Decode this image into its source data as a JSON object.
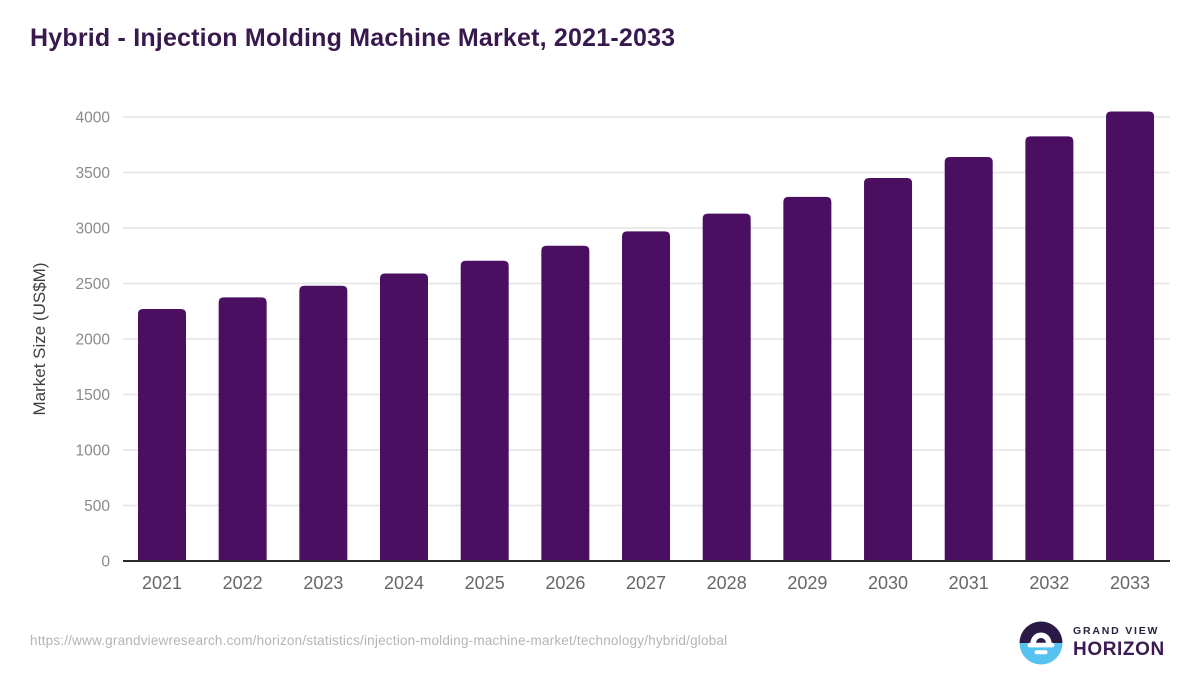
{
  "header": {
    "title": "Hybrid - Injection Molding Machine Market, 2021-2033"
  },
  "chart_data": {
    "type": "bar",
    "title": "Hybrid - Injection Molding Machine Market, 2021-2033",
    "categories": [
      "2021",
      "2022",
      "2023",
      "2024",
      "2025",
      "2026",
      "2027",
      "2028",
      "2029",
      "2030",
      "2031",
      "2032",
      "2033"
    ],
    "values": [
      2270,
      2375,
      2480,
      2590,
      2705,
      2840,
      2970,
      3130,
      3280,
      3450,
      3640,
      3825,
      4050
    ],
    "xlabel": "",
    "ylabel": "Market Size (US$M)",
    "ylim": [
      0,
      4100
    ],
    "yticks": [
      0,
      500,
      1000,
      1500,
      2000,
      2500,
      3000,
      3500,
      4000
    ],
    "grid": true,
    "legend_position": "none",
    "bar_color": "#4a0f60"
  },
  "footer": {
    "source_url": "https://www.grandviewresearch.com/horizon/statistics/injection-molding-machine-market/technology/hybrid/global",
    "brand_top": "GRAND VIEW",
    "brand_bottom": "HORIZON"
  },
  "colors": {
    "title_text": "#38194e",
    "bar": "#4a0f60",
    "gridline": "#e7e7e7",
    "axis_line": "#2b2b2b",
    "y_tick_text": "#8a8a8a",
    "x_tick_text": "#666666",
    "y_axis_title_text": "#3f3f3f",
    "url_text": "#b4b4b4",
    "logo_dark": "#2b1a45",
    "logo_blue": "#56c2f0"
  }
}
